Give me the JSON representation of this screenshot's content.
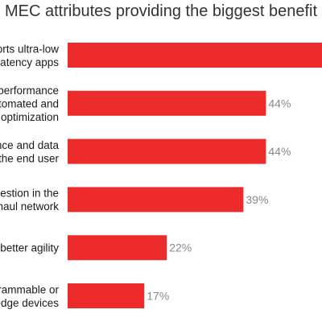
{
  "chart_data": {
    "type": "bar",
    "orientation": "horizontal",
    "title": "MEC attributes providing the biggest benefit",
    "categories": [
      [
        "orts ultra-low",
        "latency apps"
      ],
      [
        "performance",
        "tomated and",
        "optimization"
      ],
      [
        "nce and data",
        "the end user"
      ],
      [
        "estion in the",
        "haul network"
      ],
      [
        "better agility"
      ],
      [
        "rammable or",
        "edge devices"
      ]
    ],
    "values": [
      64,
      44,
      44,
      39,
      22,
      17
    ],
    "value_labels": [
      "",
      "44%",
      "44%",
      "39%",
      "22%",
      "17%"
    ],
    "unit": "%",
    "bar_color": "#ee2b2b",
    "xlabel": "",
    "ylabel": ""
  }
}
